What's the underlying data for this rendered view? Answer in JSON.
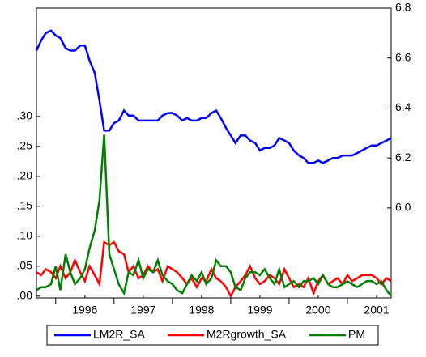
{
  "chart_data": {
    "type": "line",
    "x": [
      1995.67,
      1995.75,
      1995.83,
      1995.92,
      1996.0,
      1996.08,
      1996.17,
      1996.25,
      1996.33,
      1996.42,
      1996.5,
      1996.58,
      1996.67,
      1996.75,
      1996.83,
      1996.92,
      1997.0,
      1997.08,
      1997.17,
      1997.25,
      1997.33,
      1997.42,
      1997.5,
      1997.58,
      1997.67,
      1997.75,
      1997.83,
      1997.92,
      1998.0,
      1998.08,
      1998.17,
      1998.25,
      1998.33,
      1998.42,
      1998.5,
      1998.58,
      1998.67,
      1998.75,
      1998.83,
      1998.92,
      1999.0,
      1999.08,
      1999.17,
      1999.25,
      1999.33,
      1999.42,
      1999.5,
      1999.58,
      1999.67,
      1999.75,
      1999.83,
      1999.92,
      2000.0,
      2000.08,
      2000.17,
      2000.25,
      2000.33,
      2000.42,
      2000.5,
      2000.58,
      2000.67,
      2000.75,
      2000.83,
      2000.92,
      2001.0,
      2001.08,
      2001.17,
      2001.25,
      2001.33,
      2001.42,
      2001.5,
      2001.58,
      2001.67,
      2001.75
    ],
    "xlim": [
      1995.67,
      2001.75
    ],
    "xticks": [
      {
        "value": 1996.5,
        "label": "1996"
      },
      {
        "value": 1997.5,
        "label": "1997"
      },
      {
        "value": 1998.5,
        "label": "1998"
      },
      {
        "value": 1999.5,
        "label": "1999"
      },
      {
        "value": 2000.5,
        "label": "2000"
      },
      {
        "value": 2001.5,
        "label": "2001"
      }
    ],
    "ylim": [
      -0.003,
      0.481
    ],
    "yticks": [
      {
        "value": 0,
        "label": ".00"
      },
      {
        "value": 0.05,
        "label": ".05"
      },
      {
        "value": 0.1,
        "label": ".10"
      },
      {
        "value": 0.15,
        "label": ".15"
      },
      {
        "value": 0.2,
        "label": ".20"
      },
      {
        "value": 0.25,
        "label": ".25"
      },
      {
        "value": 0.3,
        "label": ".30"
      }
    ],
    "y2lim": [
      5.64,
      6.8
    ],
    "y2ticks": [
      {
        "value": 6,
        "label": "6.0"
      },
      6.2,
      6.4,
      6.6,
      6.8
    ],
    "series": [
      {
        "name": "LM2R_SA",
        "color": "#0000ff",
        "axis": "y2",
        "values": [
          6.63,
          6.67,
          6.7,
          6.71,
          6.69,
          6.68,
          6.64,
          6.63,
          6.63,
          6.65,
          6.65,
          6.59,
          6.54,
          6.43,
          6.31,
          6.31,
          6.34,
          6.35,
          6.39,
          6.37,
          6.37,
          6.35,
          6.35,
          6.35,
          6.35,
          6.35,
          6.37,
          6.38,
          6.38,
          6.37,
          6.35,
          6.36,
          6.35,
          6.35,
          6.36,
          6.36,
          6.38,
          6.39,
          6.36,
          6.32,
          6.29,
          6.26,
          6.29,
          6.29,
          6.27,
          6.26,
          6.23,
          6.24,
          6.24,
          6.25,
          6.28,
          6.27,
          6.26,
          6.23,
          6.21,
          6.2,
          6.18,
          6.18,
          6.19,
          6.18,
          6.19,
          6.2,
          6.2,
          6.21,
          6.21,
          6.21,
          6.22,
          6.23,
          6.24,
          6.25,
          6.25,
          6.26,
          6.27,
          6.28
        ]
      },
      {
        "name": "M2Rgrowth_SA",
        "color": "#ff0000",
        "values": [
          0.04,
          0.035,
          0.045,
          0.04,
          0.03,
          0.05,
          0.03,
          0.04,
          0.06,
          0.04,
          0.025,
          0.05,
          0.035,
          0.02,
          0.09,
          0.085,
          0.09,
          0.075,
          0.07,
          0.04,
          0.05,
          0.03,
          0.035,
          0.05,
          0.04,
          0.045,
          0.025,
          0.05,
          0.045,
          0.04,
          0.03,
          0.02,
          0.03,
          0.015,
          0.03,
          0.025,
          0.045,
          0.03,
          0.025,
          0.015,
          0.0,
          0.015,
          0.025,
          0.035,
          0.05,
          0.03,
          0.02,
          0.025,
          0.035,
          0.03,
          0.02,
          0.045,
          0.03,
          0.015,
          0.02,
          0.015,
          0.03,
          0.005,
          0.025,
          0.035,
          0.02,
          0.025,
          0.03,
          0.02,
          0.035,
          0.025,
          0.03,
          0.035,
          0.035,
          0.035,
          0.03,
          0.02,
          0.03,
          0.025
        ]
      },
      {
        "name": "PM",
        "color": "#008000",
        "values": [
          0.01,
          0.015,
          0.015,
          0.02,
          0.05,
          0.01,
          0.07,
          0.04,
          0.02,
          0.03,
          0.045,
          0.08,
          0.11,
          0.16,
          0.27,
          0.07,
          0.045,
          0.02,
          0.005,
          0.04,
          0.035,
          0.06,
          0.03,
          0.045,
          0.04,
          0.06,
          0.035,
          0.025,
          0.02,
          0.01,
          0.005,
          0.02,
          0.035,
          0.025,
          0.04,
          0.02,
          0.03,
          0.06,
          0.05,
          0.05,
          0.04,
          0.015,
          0.01,
          0.03,
          0.04,
          0.04,
          0.035,
          0.045,
          0.03,
          0.02,
          0.045,
          0.015,
          0.02,
          0.025,
          0.015,
          0.025,
          0.025,
          0.03,
          0.02,
          0.035,
          0.02,
          0.015,
          0.015,
          0.02,
          0.025,
          0.02,
          0.015,
          0.02,
          0.025,
          0.025,
          0.02,
          0.025,
          0.01,
          0.0
        ]
      }
    ]
  }
}
